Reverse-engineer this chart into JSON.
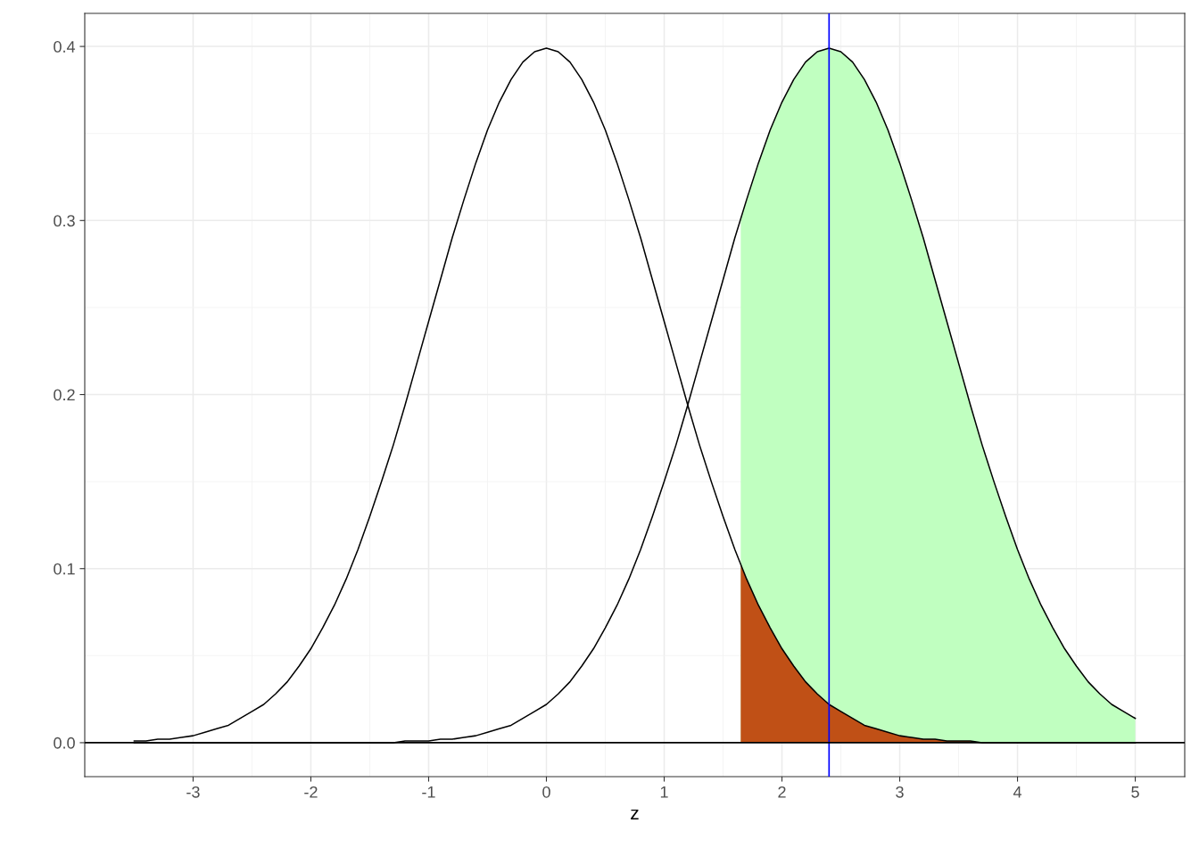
{
  "chart_data": {
    "type": "line",
    "xlabel": "z",
    "xlim": [
      -3.92,
      5.42
    ],
    "ylim": [
      -0.0195,
      0.419
    ],
    "xticks": [
      -3,
      -2,
      -1,
      0,
      1,
      2,
      3,
      4,
      5
    ],
    "yticks": [
      {
        "value": 0,
        "label": "0.0"
      },
      {
        "value": 0.1,
        "label": "0.1"
      },
      {
        "value": 0.2,
        "label": "0.2"
      },
      {
        "value": 0.3,
        "label": "0.3"
      },
      {
        "value": 0.4,
        "label": "0.4"
      }
    ],
    "grid": true,
    "marker": "none",
    "line_style": "solid",
    "x": [
      -3.5,
      -3.4,
      -3.3,
      -3.2,
      -3.1,
      -3.0,
      -2.9,
      -2.8,
      -2.7,
      -2.6,
      -2.5,
      -2.4,
      -2.3,
      -2.2,
      -2.1,
      -2.0,
      -1.9,
      -1.8,
      -1.7,
      -1.6,
      -1.5,
      -1.4,
      -1.3,
      -1.2,
      -1.1,
      -1.0,
      -0.9,
      -0.8,
      -0.7,
      -0.6,
      -0.5,
      -0.4,
      -0.3,
      -0.2,
      -0.1,
      0.0,
      0.1,
      0.2,
      0.3,
      0.4,
      0.5,
      0.6,
      0.7,
      0.8,
      0.9,
      1.0,
      1.1,
      1.2,
      1.3,
      1.4,
      1.5,
      1.6,
      1.7,
      1.8,
      1.9,
      2.0,
      2.1,
      2.2,
      2.3,
      2.4,
      2.5,
      2.6,
      2.7,
      2.8,
      2.9,
      3.0,
      3.1,
      3.2,
      3.3,
      3.4,
      3.5,
      3.6,
      3.7,
      3.8,
      3.9,
      4.0,
      4.1,
      4.2,
      4.3,
      4.4,
      4.5,
      4.6,
      4.7,
      4.8,
      4.9,
      5.0
    ],
    "series": [
      {
        "type": "area",
        "color": "#c0ffc0",
        "x": [
          1.65,
          1.7,
          1.8,
          1.9,
          2.0,
          2.1,
          2.2,
          2.3,
          2.4,
          2.5,
          2.6,
          2.7,
          2.8,
          2.9,
          3.0,
          3.1,
          3.2,
          3.3,
          3.4,
          3.5,
          3.6,
          3.7,
          3.8,
          3.9,
          4.0,
          4.1,
          4.2,
          4.3,
          4.4,
          4.5,
          4.6,
          4.7,
          4.8,
          4.9,
          5.0
        ],
        "values": [
          0.301,
          0.312,
          0.333,
          0.352,
          0.368,
          0.381,
          0.391,
          0.397,
          0.399,
          0.397,
          0.391,
          0.381,
          0.368,
          0.352,
          0.333,
          0.312,
          0.29,
          0.266,
          0.242,
          0.218,
          0.194,
          0.171,
          0.15,
          0.13,
          0.111,
          0.094,
          0.079,
          0.066,
          0.054,
          0.044,
          0.035,
          0.028,
          0.022,
          0.018,
          0.014
        ]
      },
      {
        "type": "area",
        "color": "#c05016",
        "x": [
          1.65,
          1.7,
          1.8,
          1.9,
          2.0,
          2.1,
          2.2,
          2.3,
          2.4,
          2.5,
          2.6,
          2.7,
          2.8,
          2.9,
          3.0,
          3.1,
          3.2,
          3.3,
          3.4,
          3.5,
          3.6,
          3.7,
          3.8,
          3.9,
          4.0,
          4.1,
          4.2,
          4.3,
          4.4,
          4.5,
          4.6,
          4.7,
          4.8,
          4.9,
          5.0
        ],
        "values": [
          0.102,
          0.094,
          0.079,
          0.066,
          0.054,
          0.044,
          0.035,
          0.028,
          0.022,
          0.018,
          0.014,
          0.01,
          0.008,
          0.006,
          0.004,
          0.003,
          0.002,
          0.002,
          0.001,
          0.001,
          0.001,
          0,
          0,
          0,
          0,
          0,
          0,
          0,
          0,
          0,
          0,
          0,
          0,
          0,
          0
        ]
      },
      {
        "color": "#000000",
        "values": [
          0.001,
          0.001,
          0.002,
          0.002,
          0.003,
          0.004,
          0.006,
          0.008,
          0.01,
          0.014,
          0.018,
          0.022,
          0.028,
          0.035,
          0.044,
          0.054,
          0.066,
          0.079,
          0.094,
          0.111,
          0.13,
          0.15,
          0.171,
          0.194,
          0.218,
          0.242,
          0.266,
          0.29,
          0.312,
          0.333,
          0.352,
          0.368,
          0.381,
          0.391,
          0.397,
          0.399,
          0.397,
          0.391,
          0.381,
          0.368,
          0.352,
          0.333,
          0.312,
          0.29,
          0.266,
          0.242,
          0.218,
          0.194,
          0.171,
          0.15,
          0.13,
          0.111,
          0.094,
          0.079,
          0.066,
          0.054,
          0.044,
          0.035,
          0.028,
          0.022,
          0.018,
          0.014,
          0.01,
          0.008,
          0.006,
          0.004,
          0.003,
          0.002,
          0.002,
          0.001,
          0.001,
          0.001,
          0,
          0,
          0,
          0,
          0,
          0,
          0,
          0,
          0,
          0,
          0,
          0,
          0,
          0
        ]
      },
      {
        "color": "#000000",
        "values": [
          0,
          0,
          0,
          0,
          0,
          0,
          0,
          0,
          0,
          0,
          0,
          0,
          0,
          0,
          0,
          0,
          0,
          0,
          0,
          0,
          0,
          0,
          0,
          0.001,
          0.001,
          0.001,
          0.002,
          0.002,
          0.003,
          0.004,
          0.006,
          0.008,
          0.01,
          0.014,
          0.018,
          0.022,
          0.028,
          0.035,
          0.044,
          0.054,
          0.066,
          0.079,
          0.094,
          0.111,
          0.13,
          0.15,
          0.171,
          0.194,
          0.218,
          0.242,
          0.266,
          0.29,
          0.312,
          0.333,
          0.352,
          0.368,
          0.381,
          0.391,
          0.397,
          0.399,
          0.397,
          0.391,
          0.381,
          0.368,
          0.352,
          0.333,
          0.312,
          0.29,
          0.266,
          0.242,
          0.218,
          0.194,
          0.171,
          0.15,
          0.13,
          0.111,
          0.094,
          0.079,
          0.066,
          0.054,
          0.044,
          0.035,
          0.028,
          0.022,
          0.018,
          0.014
        ]
      }
    ],
    "ref_lines": [
      {
        "axis": "x",
        "value": 2.4,
        "color": "#0000ff"
      },
      {
        "axis": "y",
        "value": 0,
        "color": "#000000"
      }
    ]
  }
}
